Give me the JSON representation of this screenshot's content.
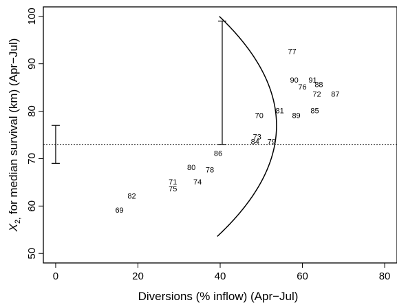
{
  "chart_data": {
    "type": "scatter",
    "title": "",
    "xlabel": "Diversions (% inflow) (Apr−Jul)",
    "ylabel_parts": {
      "variable": "X",
      "subscript": "2,",
      "rest": " for median survival (km) (Apr−Jul)"
    },
    "xlim": [
      -3,
      83
    ],
    "ylim": [
      48,
      102
    ],
    "x_ticks": [
      {
        "value": 0,
        "label": "0"
      },
      {
        "value": 20,
        "label": "20"
      },
      {
        "value": 40,
        "label": "40"
      },
      {
        "value": 60,
        "label": "60"
      },
      {
        "value": 80,
        "label": "80"
      }
    ],
    "y_ticks": [
      {
        "value": 50,
        "label": "50"
      },
      {
        "value": 60,
        "label": "60"
      },
      {
        "value": 70,
        "label": "70"
      },
      {
        "value": 80,
        "label": "80"
      },
      {
        "value": 90,
        "label": "90"
      },
      {
        "value": 100,
        "label": "100"
      }
    ],
    "points": [
      {
        "label": "69",
        "x": 15.5,
        "y": 59
      },
      {
        "label": "82",
        "x": 18.5,
        "y": 62
      },
      {
        "label": "71",
        "x": 28.5,
        "y": 65
      },
      {
        "label": "75",
        "x": 28.5,
        "y": 63.5
      },
      {
        "label": "74",
        "x": 34.5,
        "y": 65
      },
      {
        "label": "80",
        "x": 33,
        "y": 68
      },
      {
        "label": "78",
        "x": 37.5,
        "y": 67.5
      },
      {
        "label": "86",
        "x": 39.5,
        "y": 71
      },
      {
        "label": "73",
        "x": 49,
        "y": 74.5
      },
      {
        "label": "84",
        "x": 48.5,
        "y": 73.5
      },
      {
        "label": "79",
        "x": 52.5,
        "y": 73.5
      },
      {
        "label": "70",
        "x": 49.5,
        "y": 79
      },
      {
        "label": "81",
        "x": 54.5,
        "y": 80
      },
      {
        "label": "89",
        "x": 58.5,
        "y": 79
      },
      {
        "label": "85",
        "x": 63,
        "y": 80
      },
      {
        "label": "77",
        "x": 57.5,
        "y": 92.5
      },
      {
        "label": "90",
        "x": 58,
        "y": 86.5
      },
      {
        "label": "76",
        "x": 60,
        "y": 85
      },
      {
        "label": "91",
        "x": 62.5,
        "y": 86.5
      },
      {
        "label": "88",
        "x": 64,
        "y": 85.5
      },
      {
        "label": "72",
        "x": 63.5,
        "y": 83.5
      },
      {
        "label": "87",
        "x": 68,
        "y": 83.5
      }
    ],
    "curve": {
      "form": "parabola x = a*(y - y0)^2 + b",
      "a": -0.0263,
      "y0": 77,
      "b": 53.7,
      "y_range": [
        53.6,
        100
      ]
    },
    "reference_line": {
      "style": "dotted",
      "y": 73
    },
    "error_bars": [
      {
        "x": 0,
        "low": 69,
        "high": 77
      },
      {
        "x": 40.5,
        "low": 73,
        "high": 99
      }
    ],
    "grid": false,
    "legend": false
  }
}
